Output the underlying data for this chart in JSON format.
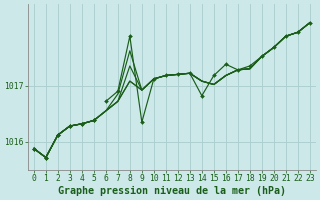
{
  "title": "Graphe pression niveau de la mer (hPa)",
  "bg_color": "#cce8e8",
  "grid_color": "#aacccc",
  "line_color": "#1a5e1a",
  "xlim": [
    -0.5,
    23.5
  ],
  "ylim": [
    1015.5,
    1018.45
  ],
  "yticks": [
    1016,
    1017
  ],
  "xticks": [
    0,
    1,
    2,
    3,
    4,
    5,
    6,
    7,
    8,
    9,
    10,
    11,
    12,
    13,
    14,
    15,
    16,
    17,
    18,
    19,
    20,
    21,
    22,
    23
  ],
  "series": [
    [
      1015.88,
      1015.72,
      1016.12,
      1016.28,
      1016.32,
      1016.38,
      1016.55,
      1016.72,
      1017.08,
      1016.92,
      1017.12,
      1017.18,
      1017.2,
      1017.22,
      1017.08,
      1017.02,
      1017.18,
      1017.28,
      1017.3,
      1017.52,
      1017.68,
      1017.88,
      1017.95,
      1018.12
    ],
    [
      1015.88,
      1015.72,
      1016.12,
      1016.28,
      1016.32,
      1016.38,
      1016.55,
      1016.72,
      1017.08,
      1016.92,
      1017.12,
      1017.18,
      1017.2,
      1017.22,
      1017.08,
      1017.02,
      1017.18,
      1017.28,
      1017.3,
      1017.52,
      1017.68,
      1017.88,
      1017.95,
      1018.12
    ],
    [
      1015.88,
      1015.72,
      1016.12,
      1016.28,
      1016.32,
      1016.38,
      1016.55,
      1016.72,
      1017.35,
      1016.92,
      1017.12,
      1017.18,
      1017.2,
      1017.22,
      1017.08,
      1017.02,
      1017.18,
      1017.28,
      1017.3,
      1017.52,
      1017.68,
      1017.88,
      1017.95,
      1018.12
    ],
    [
      1015.88,
      1015.72,
      1016.12,
      1016.28,
      1016.32,
      1016.38,
      1016.55,
      1016.85,
      1017.62,
      1016.92,
      1017.12,
      1017.18,
      1017.2,
      1017.22,
      1017.08,
      1017.02,
      1017.18,
      1017.28,
      1017.3,
      1017.52,
      1017.68,
      1017.88,
      1017.95,
      1018.12
    ]
  ],
  "spike_series": [
    1016.72,
    1016.9,
    1017.88,
    1016.35,
    1017.12,
    1017.18,
    1017.2,
    1017.22,
    1016.82,
    1017.18,
    1017.38,
    1017.28,
    1017.35,
    1017.52,
    1017.68,
    1017.88,
    1017.95,
    1018.12
  ],
  "spike_start": 6,
  "tick_fontsize": 5.8,
  "label_fontsize": 7.2
}
